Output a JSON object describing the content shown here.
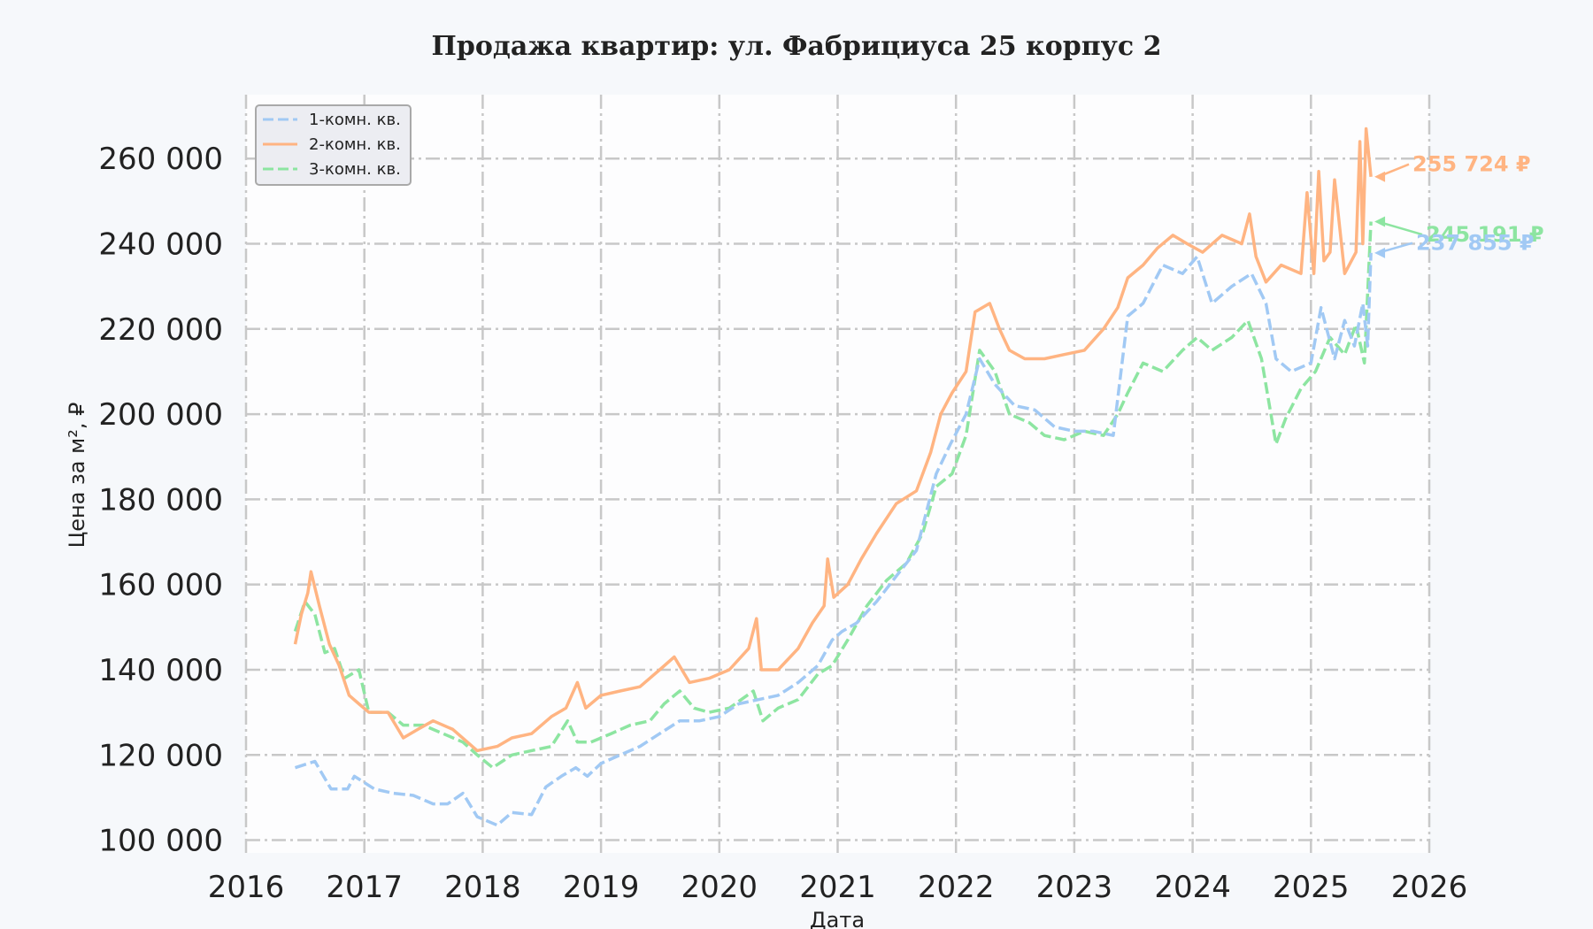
{
  "chart_data": {
    "type": "line",
    "title": "Продажа квартир: ул. Фабрициуса 25 корпус 2",
    "xlabel": "Дата",
    "ylabel": "Цена за м², ₽",
    "xlim": [
      "2016-01-01",
      "2026-01-01"
    ],
    "ylim": [
      97000,
      275000
    ],
    "x_ticks": [
      "2016",
      "2017",
      "2018",
      "2019",
      "2020",
      "2021",
      "2022",
      "2023",
      "2024",
      "2025",
      "2026"
    ],
    "y_ticks": [
      100000,
      120000,
      140000,
      160000,
      180000,
      200000,
      220000,
      240000,
      260000
    ],
    "y_tick_labels": [
      "100 000",
      "120 000",
      "140 000",
      "160 000",
      "180 000",
      "200 000",
      "220 000",
      "240 000",
      "260 000"
    ],
    "grid": true,
    "legend_position": "top-left",
    "series": [
      {
        "name": "1-комн. кв.",
        "color": "#a1c9f4",
        "linestyle": "dashed",
        "annotation": "237 855 ₽",
        "points": [
          [
            "2016-06-01",
            117000
          ],
          [
            "2016-08-01",
            118500
          ],
          [
            "2016-09-20",
            112000
          ],
          [
            "2016-11-10",
            112000
          ],
          [
            "2016-12-01",
            115000
          ],
          [
            "2017-02-01",
            112000
          ],
          [
            "2017-04-01",
            111000
          ],
          [
            "2017-06-01",
            110500
          ],
          [
            "2017-08-01",
            108500
          ],
          [
            "2017-09-15",
            108500
          ],
          [
            "2017-11-01",
            111000
          ],
          [
            "2017-12-15",
            105500
          ],
          [
            "2018-02-15",
            103500
          ],
          [
            "2018-04-01",
            106500
          ],
          [
            "2018-06-01",
            106000
          ],
          [
            "2018-07-15",
            112500
          ],
          [
            "2018-09-01",
            115000
          ],
          [
            "2018-10-15",
            117000
          ],
          [
            "2018-11-20",
            115000
          ],
          [
            "2019-01-01",
            118000
          ],
          [
            "2019-03-01",
            120000
          ],
          [
            "2019-05-01",
            122000
          ],
          [
            "2019-07-01",
            125000
          ],
          [
            "2019-09-01",
            128000
          ],
          [
            "2019-11-01",
            128000
          ],
          [
            "2020-01-01",
            129000
          ],
          [
            "2020-03-01",
            132000
          ],
          [
            "2020-05-01",
            133000
          ],
          [
            "2020-07-01",
            134000
          ],
          [
            "2020-09-01",
            137000
          ],
          [
            "2020-11-01",
            141000
          ],
          [
            "2020-12-15",
            147000
          ],
          [
            "2021-01-15",
            149000
          ],
          [
            "2021-03-01",
            151000
          ],
          [
            "2021-05-01",
            156000
          ],
          [
            "2021-07-01",
            162000
          ],
          [
            "2021-09-01",
            168000
          ],
          [
            "2021-11-01",
            186000
          ],
          [
            "2021-12-15",
            193000
          ],
          [
            "2022-02-01",
            200000
          ],
          [
            "2022-03-15",
            213000
          ],
          [
            "2022-05-01",
            207000
          ],
          [
            "2022-07-01",
            202000
          ],
          [
            "2022-09-01",
            201000
          ],
          [
            "2022-11-01",
            197000
          ],
          [
            "2023-01-01",
            196000
          ],
          [
            "2023-03-01",
            196000
          ],
          [
            "2023-05-01",
            195000
          ],
          [
            "2023-06-15",
            223000
          ],
          [
            "2023-08-01",
            226000
          ],
          [
            "2023-10-01",
            235000
          ],
          [
            "2023-12-01",
            233000
          ],
          [
            "2024-01-15",
            237000
          ],
          [
            "2024-03-01",
            226000
          ],
          [
            "2024-05-01",
            230000
          ],
          [
            "2024-07-01",
            233000
          ],
          [
            "2024-08-15",
            226000
          ],
          [
            "2024-09-15",
            213000
          ],
          [
            "2024-11-01",
            210000
          ],
          [
            "2025-01-01",
            212000
          ],
          [
            "2025-02-01",
            225000
          ],
          [
            "2025-03-15",
            213000
          ],
          [
            "2025-04-15",
            222000
          ],
          [
            "2025-05-15",
            216000
          ],
          [
            "2025-06-10",
            226000
          ],
          [
            "2025-06-25",
            216000
          ],
          [
            "2025-07-05",
            237855
          ]
        ]
      },
      {
        "name": "2-комн. кв.",
        "color": "#ffb482",
        "linestyle": "solid",
        "annotation": "255 724 ₽",
        "points": [
          [
            "2016-06-01",
            146000
          ],
          [
            "2016-06-20",
            153000
          ],
          [
            "2016-07-10",
            158000
          ],
          [
            "2016-07-20",
            163000
          ],
          [
            "2016-08-15",
            155000
          ],
          [
            "2016-09-15",
            146000
          ],
          [
            "2016-10-15",
            141000
          ],
          [
            "2016-11-15",
            134000
          ],
          [
            "2016-12-15",
            132000
          ],
          [
            "2017-01-15",
            130000
          ],
          [
            "2017-03-15",
            130000
          ],
          [
            "2017-05-01",
            124000
          ],
          [
            "2017-06-15",
            126000
          ],
          [
            "2017-08-01",
            128000
          ],
          [
            "2017-10-01",
            126000
          ],
          [
            "2017-11-15",
            123000
          ],
          [
            "2017-12-15",
            121000
          ],
          [
            "2018-02-15",
            122000
          ],
          [
            "2018-04-01",
            124000
          ],
          [
            "2018-06-01",
            125000
          ],
          [
            "2018-08-01",
            129000
          ],
          [
            "2018-09-15",
            131000
          ],
          [
            "2018-10-20",
            137000
          ],
          [
            "2018-11-15",
            131000
          ],
          [
            "2019-01-01",
            134000
          ],
          [
            "2019-03-01",
            135000
          ],
          [
            "2019-05-01",
            136000
          ],
          [
            "2019-07-01",
            140000
          ],
          [
            "2019-08-15",
            143000
          ],
          [
            "2019-10-01",
            137000
          ],
          [
            "2019-12-01",
            138000
          ],
          [
            "2020-02-01",
            140000
          ],
          [
            "2020-04-01",
            145000
          ],
          [
            "2020-04-25",
            152000
          ],
          [
            "2020-05-10",
            140000
          ],
          [
            "2020-07-01",
            140000
          ],
          [
            "2020-09-01",
            145000
          ],
          [
            "2020-10-15",
            151000
          ],
          [
            "2020-11-20",
            155000
          ],
          [
            "2020-12-01",
            166000
          ],
          [
            "2020-12-20",
            157000
          ],
          [
            "2021-02-01",
            160000
          ],
          [
            "2021-03-15",
            166000
          ],
          [
            "2021-05-01",
            172000
          ],
          [
            "2021-07-01",
            179000
          ],
          [
            "2021-09-01",
            182000
          ],
          [
            "2021-10-15",
            191000
          ],
          [
            "2021-11-15",
            200000
          ],
          [
            "2021-12-20",
            205000
          ],
          [
            "2022-02-01",
            210000
          ],
          [
            "2022-03-01",
            224000
          ],
          [
            "2022-04-15",
            226000
          ],
          [
            "2022-05-15",
            220000
          ],
          [
            "2022-06-15",
            215000
          ],
          [
            "2022-08-01",
            213000
          ],
          [
            "2022-10-01",
            213000
          ],
          [
            "2022-12-01",
            214000
          ],
          [
            "2023-02-01",
            215000
          ],
          [
            "2023-04-01",
            220000
          ],
          [
            "2023-05-15",
            225000
          ],
          [
            "2023-06-15",
            232000
          ],
          [
            "2023-08-01",
            235000
          ],
          [
            "2023-09-15",
            239000
          ],
          [
            "2023-11-01",
            242000
          ],
          [
            "2023-12-15",
            240000
          ],
          [
            "2024-02-01",
            238000
          ],
          [
            "2024-04-01",
            242000
          ],
          [
            "2024-06-01",
            240000
          ],
          [
            "2024-06-25",
            247000
          ],
          [
            "2024-07-15",
            237000
          ],
          [
            "2024-08-15",
            231000
          ],
          [
            "2024-10-01",
            235000
          ],
          [
            "2024-12-01",
            233000
          ],
          [
            "2024-12-20",
            252000
          ],
          [
            "2025-01-10",
            233000
          ],
          [
            "2025-01-25",
            257000
          ],
          [
            "2025-02-10",
            236000
          ],
          [
            "2025-03-01",
            238000
          ],
          [
            "2025-03-15",
            255000
          ],
          [
            "2025-04-15",
            233000
          ],
          [
            "2025-05-20",
            238000
          ],
          [
            "2025-06-01",
            264000
          ],
          [
            "2025-06-10",
            240000
          ],
          [
            "2025-06-20",
            267000
          ],
          [
            "2025-07-05",
            255724
          ]
        ]
      },
      {
        "name": "3-комн. кв.",
        "color": "#8de5a1",
        "linestyle": "dashed",
        "annotation": "245 191 ₽",
        "points": [
          [
            "2016-06-01",
            149000
          ],
          [
            "2016-07-01",
            156000
          ],
          [
            "2016-08-01",
            153000
          ],
          [
            "2016-09-01",
            144000
          ],
          [
            "2016-10-01",
            145000
          ],
          [
            "2016-11-01",
            138000
          ],
          [
            "2016-12-15",
            140000
          ],
          [
            "2017-01-15",
            130000
          ],
          [
            "2017-03-15",
            130000
          ],
          [
            "2017-05-01",
            127000
          ],
          [
            "2017-07-01",
            127000
          ],
          [
            "2017-09-01",
            125000
          ],
          [
            "2017-11-01",
            123000
          ],
          [
            "2017-12-15",
            120000
          ],
          [
            "2018-02-01",
            117000
          ],
          [
            "2018-04-01",
            120000
          ],
          [
            "2018-06-01",
            121000
          ],
          [
            "2018-08-01",
            122000
          ],
          [
            "2018-09-20",
            128000
          ],
          [
            "2018-10-20",
            123000
          ],
          [
            "2018-12-01",
            123000
          ],
          [
            "2019-02-01",
            125000
          ],
          [
            "2019-04-01",
            127000
          ],
          [
            "2019-06-01",
            128000
          ],
          [
            "2019-07-15",
            132000
          ],
          [
            "2019-09-01",
            135000
          ],
          [
            "2019-10-15",
            131000
          ],
          [
            "2019-12-01",
            130000
          ],
          [
            "2020-02-01",
            131000
          ],
          [
            "2020-04-15",
            135000
          ],
          [
            "2020-05-15",
            128000
          ],
          [
            "2020-07-01",
            131000
          ],
          [
            "2020-09-01",
            133000
          ],
          [
            "2020-11-01",
            139000
          ],
          [
            "2020-12-15",
            141000
          ],
          [
            "2021-02-01",
            147000
          ],
          [
            "2021-04-01",
            155000
          ],
          [
            "2021-06-01",
            161000
          ],
          [
            "2021-08-01",
            165000
          ],
          [
            "2021-09-20",
            172000
          ],
          [
            "2021-11-01",
            183000
          ],
          [
            "2021-12-20",
            186000
          ],
          [
            "2022-02-01",
            195000
          ],
          [
            "2022-03-15",
            215000
          ],
          [
            "2022-05-01",
            210000
          ],
          [
            "2022-06-15",
            200000
          ],
          [
            "2022-08-15",
            198000
          ],
          [
            "2022-10-01",
            195000
          ],
          [
            "2022-12-01",
            194000
          ],
          [
            "2023-02-01",
            196000
          ],
          [
            "2023-04-01",
            195000
          ],
          [
            "2023-05-15",
            200000
          ],
          [
            "2023-06-15",
            205000
          ],
          [
            "2023-08-01",
            212000
          ],
          [
            "2023-10-01",
            210000
          ],
          [
            "2023-12-01",
            215000
          ],
          [
            "2024-01-15",
            218000
          ],
          [
            "2024-03-01",
            215000
          ],
          [
            "2024-05-01",
            218000
          ],
          [
            "2024-06-20",
            222000
          ],
          [
            "2024-08-01",
            213000
          ],
          [
            "2024-09-15",
            193000
          ],
          [
            "2024-10-15",
            199000
          ],
          [
            "2024-12-01",
            206000
          ],
          [
            "2025-01-15",
            210000
          ],
          [
            "2025-03-01",
            218000
          ],
          [
            "2025-04-15",
            214000
          ],
          [
            "2025-05-20",
            221000
          ],
          [
            "2025-06-15",
            212000
          ],
          [
            "2025-07-05",
            245191
          ]
        ]
      }
    ]
  }
}
